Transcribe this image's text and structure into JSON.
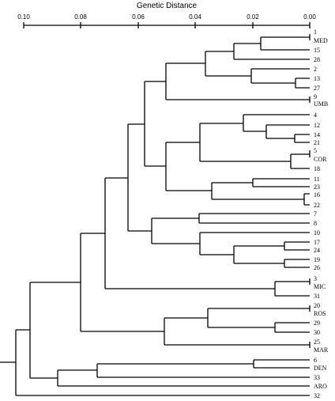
{
  "title": "Genetic Distance",
  "axis": {
    "ticks": [
      "0.10",
      "0.08",
      "0.06",
      "0.04",
      "0.02",
      "0.00"
    ]
  },
  "leaves": {
    "1": "1",
    "MED": "MED",
    "15": "15",
    "28": "28",
    "2": "2",
    "13": "13",
    "27": "27",
    "9": "9",
    "UMB": "UMB",
    "4": "4",
    "12": "12",
    "14": "14",
    "21": "21",
    "5": "5",
    "COR": "COR",
    "18": "18",
    "11": "11",
    "23": "23",
    "16": "16",
    "22": "22",
    "7": "7",
    "8": "8",
    "10": "10",
    "17": "17",
    "24": "24",
    "19": "19",
    "26": "26",
    "3": "3",
    "MIC": "MIC",
    "31": "31",
    "20": "20",
    "ROS": "ROS",
    "29": "29",
    "30": "30",
    "25": "25",
    "MAR": "MAR",
    "6": "6",
    "DEN": "DEN",
    "33": "33",
    "ARO": "ARO",
    "32": "32"
  }
}
